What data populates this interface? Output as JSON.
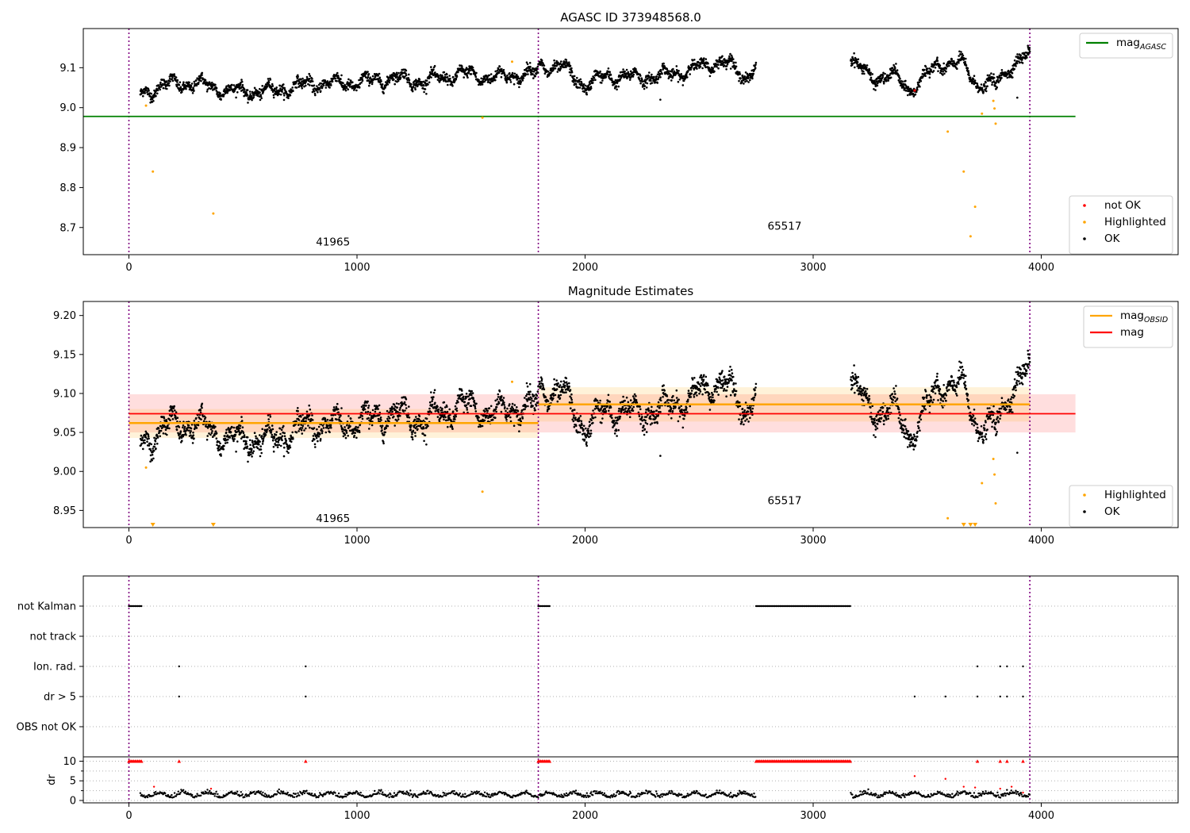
{
  "chart_data": [
    {
      "type": "scatter",
      "title": "AGASC ID 373948568.0",
      "xlim": [
        -200,
        4600
      ],
      "ylim": [
        8.632,
        9.198
      ],
      "xticks": [
        0,
        1000,
        2000,
        3000,
        4000
      ],
      "yticks": [
        8.7,
        8.8,
        8.9,
        9.0,
        9.1
      ],
      "ytick_labels": [
        "8.7",
        "8.8",
        "8.9",
        "9.0",
        "9.1"
      ],
      "grid": false,
      "obsid_boundaries": [
        0,
        1795,
        3950
      ],
      "mag_agasc": 8.978,
      "mag_agasc_xrange": [
        -200,
        4150
      ],
      "annotations": [
        {
          "text": "41965",
          "x": 820,
          "y": 8.655
        },
        {
          "text": "65517",
          "x": 2800,
          "y": 8.695
        }
      ],
      "legend_upper": {
        "placement": "upper right",
        "entries": [
          {
            "label": "mag",
            "sub": "AGASC",
            "color": "#008000"
          }
        ]
      },
      "legend_lower": {
        "placement": "lower right",
        "entries": [
          {
            "label": "not OK",
            "color": "#ff0000"
          },
          {
            "label": "Highlighted",
            "color": "#ffa500"
          },
          {
            "label": "OK",
            "color": "#000000"
          }
        ]
      },
      "ok_segments": [
        {
          "x0": 50,
          "x1": 1795,
          "knots": [
            [
              50,
              9.032
            ],
            [
              150,
              9.058
            ],
            [
              300,
              9.06
            ],
            [
              450,
              9.042
            ],
            [
              600,
              9.04
            ],
            [
              800,
              9.06
            ],
            [
              1000,
              9.062
            ],
            [
              1150,
              9.075
            ],
            [
              1300,
              9.065
            ],
            [
              1450,
              9.085
            ],
            [
              1600,
              9.075
            ],
            [
              1795,
              9.088
            ]
          ]
        },
        {
          "x0": 1800,
          "x1": 2750,
          "knots": [
            [
              1800,
              9.105
            ],
            [
              1900,
              9.1
            ],
            [
              2000,
              9.055
            ],
            [
              2100,
              9.08
            ],
            [
              2200,
              9.075
            ],
            [
              2350,
              9.08
            ],
            [
              2500,
              9.1
            ],
            [
              2600,
              9.12
            ],
            [
              2700,
              9.075
            ],
            [
              2750,
              9.108
            ]
          ]
        },
        {
          "x0": 3165,
          "x1": 3950,
          "knots": [
            [
              3165,
              9.12
            ],
            [
              3250,
              9.075
            ],
            [
              3350,
              9.08
            ],
            [
              3420,
              9.045
            ],
            [
              3480,
              9.07
            ],
            [
              3550,
              9.11
            ],
            [
              3650,
              9.11
            ],
            [
              3720,
              9.06
            ],
            [
              3800,
              9.055
            ],
            [
              3870,
              9.11
            ],
            [
              3950,
              9.13
            ]
          ]
        }
      ],
      "ok_outliers": [
        [
          2330,
          9.02
        ],
        [
          3895,
          9.025
        ]
      ],
      "highlighted": [
        [
          75,
          9.005
        ],
        [
          105,
          8.84
        ],
        [
          370,
          8.735
        ],
        [
          1550,
          8.975
        ],
        [
          1680,
          9.115
        ],
        [
          3590,
          8.94
        ],
        [
          3660,
          8.84
        ],
        [
          3690,
          8.678
        ],
        [
          3710,
          8.752
        ],
        [
          3740,
          8.985
        ],
        [
          3790,
          9.017
        ],
        [
          3795,
          8.998
        ],
        [
          3800,
          8.96
        ]
      ],
      "not_ok": [
        [
          3445,
          9.043
        ]
      ]
    },
    {
      "type": "scatter",
      "title": "Magnitude Estimates",
      "xlim": [
        -200,
        4600
      ],
      "ylim": [
        8.928,
        9.218
      ],
      "xticks": [
        0,
        1000,
        2000,
        3000,
        4000
      ],
      "yticks": [
        8.95,
        9.0,
        9.05,
        9.1,
        9.15,
        9.2
      ],
      "ytick_labels": [
        "8.95",
        "9.00",
        "9.05",
        "9.10",
        "9.15",
        "9.20"
      ],
      "grid": false,
      "obsid_boundaries": [
        0,
        1795,
        3950
      ],
      "mag": 9.074,
      "mag_band": [
        9.05,
        9.099
      ],
      "mag_xrange": [
        -200,
        4150
      ],
      "mag_obsid": [
        {
          "x0": 0,
          "x1": 1795,
          "value": 9.062,
          "band": [
            9.043,
            9.08
          ]
        },
        {
          "x0": 1795,
          "x1": 3950,
          "value": 9.086,
          "band": [
            9.064,
            9.108
          ]
        }
      ],
      "annotations": [
        {
          "text": "41965",
          "x": 820,
          "y": 8.935
        },
        {
          "text": "65517",
          "x": 2800,
          "y": 8.958
        }
      ],
      "legend_upper": {
        "placement": "upper right",
        "entries": [
          {
            "label": "mag",
            "sub": "OBSID",
            "color": "#ffa500"
          },
          {
            "label": "mag",
            "sub": "",
            "color": "#ff0000"
          }
        ]
      },
      "legend_lower": {
        "placement": "lower right",
        "entries": [
          {
            "label": "Highlighted",
            "color": "#ffa500"
          },
          {
            "label": "OK",
            "color": "#000000"
          }
        ]
      },
      "highlighted": [
        [
          75,
          9.005
        ],
        [
          1550,
          8.974
        ],
        [
          1680,
          9.115
        ],
        [
          3590,
          8.94
        ],
        [
          3740,
          8.985
        ],
        [
          3790,
          9.016
        ],
        [
          3795,
          8.996
        ],
        [
          3800,
          8.959
        ]
      ],
      "highlighted_offscale": [
        105,
        370,
        3660,
        3690,
        3710
      ],
      "ok_outliers": [
        [
          2330,
          9.02
        ],
        [
          3895,
          9.024
        ]
      ]
    },
    {
      "type": "scatter",
      "title": "",
      "xlim": [
        -200,
        4600
      ],
      "xticks": [
        0,
        1000,
        2000,
        3000,
        4000
      ],
      "obsid_boundaries": [
        0,
        1795,
        3950
      ],
      "flag_rows": [
        "not Kalman",
        "not track",
        "Ion. rad.",
        "dr > 5",
        "OBS not OK"
      ],
      "flags": {
        "not Kalman": [
          [
            0,
            55
          ],
          [
            1795,
            1845
          ],
          [
            2750,
            3165
          ]
        ],
        "not track": [],
        "Ion. rad.": [
          220,
          775,
          3720,
          3820,
          3850,
          3920
        ],
        "dr > 5": [
          220,
          775,
          3445,
          3580,
          3720,
          3820,
          3850,
          3920
        ],
        "OBS not OK": []
      },
      "dr_ylabel": "dr",
      "dr_ylim": [
        0,
        10.5
      ],
      "dr_yticks": [
        0,
        5,
        10
      ],
      "dr_yticks_minor": [
        2.5,
        7.5
      ],
      "dr_clipped": [
        [
          0,
          55
        ],
        [
          1795,
          1845
        ],
        [
          2750,
          3165
        ],
        220,
        775,
        3720,
        3820,
        3850,
        3920
      ],
      "dr_high": [
        [
          110,
          3.5
        ],
        [
          360,
          3.0
        ],
        [
          3445,
          6.2
        ],
        [
          3580,
          5.5
        ],
        [
          3660,
          3.5
        ],
        [
          3710,
          3.3
        ],
        [
          3820,
          3.0
        ],
        [
          3870,
          3.5
        ],
        [
          3920,
          2.0
        ]
      ],
      "dr_baseline_segments": [
        [
          50,
          1795
        ],
        [
          1800,
          2750
        ],
        [
          3165,
          3950
        ]
      ]
    }
  ]
}
